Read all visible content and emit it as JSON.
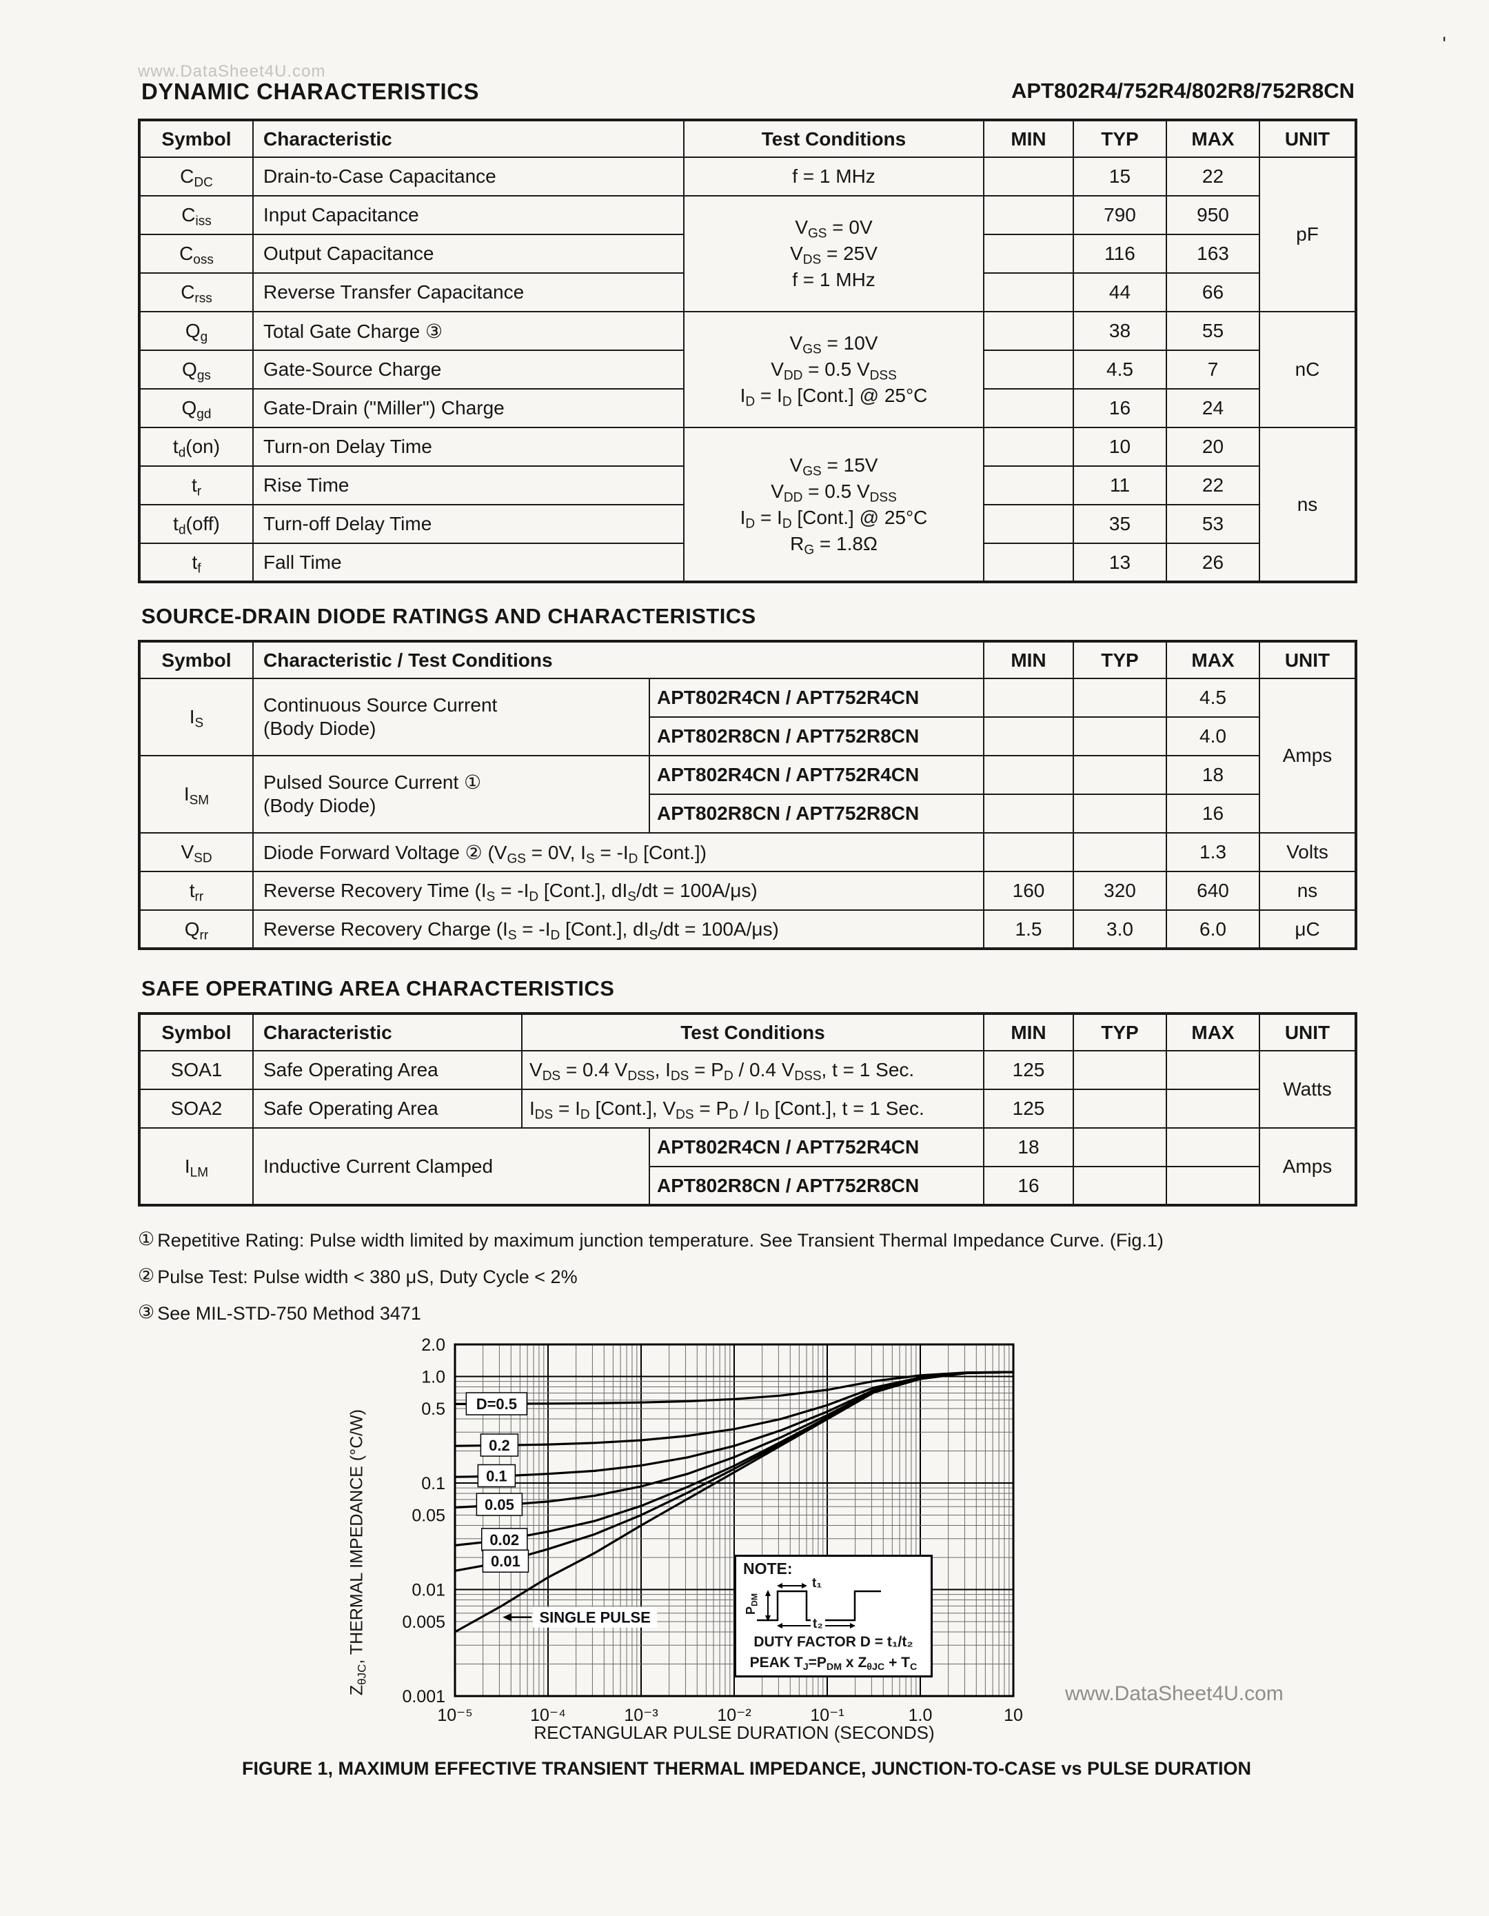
{
  "page": {
    "title": "DYNAMIC CHARACTERISTICS",
    "part_number": "APT802R4/752R4/802R8/752R8CN",
    "watermark_top": "www.DataSheet4U.com",
    "watermark_bottom": "www.DataSheet4U.com",
    "artifact": "'"
  },
  "dyn_table": {
    "headers": {
      "symbol": "Symbol",
      "characteristic": "Characteristic",
      "conditions": "Test Conditions",
      "min": "MIN",
      "typ": "TYP",
      "max": "MAX",
      "unit": "UNIT"
    },
    "rows": [
      {
        "symbol": "C~DC~",
        "characteristic": "Drain-to-Case Capacitance",
        "typ": "15",
        "max": "22"
      },
      {
        "symbol": "C~iss~",
        "characteristic": "Input Capacitance",
        "typ": "790",
        "max": "950"
      },
      {
        "symbol": "C~oss~",
        "characteristic": "Output Capacitance",
        "typ": "116",
        "max": "163"
      },
      {
        "symbol": "C~rss~",
        "characteristic": "Reverse Transfer Capacitance",
        "typ": "44",
        "max": "66"
      },
      {
        "symbol": "Q~g~",
        "characteristic": "Total Gate Charge ③",
        "typ": "38",
        "max": "55"
      },
      {
        "symbol": "Q~gs~",
        "characteristic": "Gate-Source Charge",
        "typ": "4.5",
        "max": "7"
      },
      {
        "symbol": "Q~gd~",
        "characteristic": "Gate-Drain (\"Miller\") Charge",
        "typ": "16",
        "max": "24"
      },
      {
        "symbol": "t~d~(on)",
        "characteristic": "Turn-on Delay Time",
        "typ": "10",
        "max": "20"
      },
      {
        "symbol": "t~r~",
        "characteristic": "Rise Time",
        "typ": "11",
        "max": "22"
      },
      {
        "symbol": "t~d~(off)",
        "characteristic": "Turn-off Delay Time",
        "typ": "35",
        "max": "53"
      },
      {
        "symbol": "t~f~",
        "characteristic": "Fall Time",
        "typ": "13",
        "max": "26"
      }
    ],
    "cond_cdc": "f = 1 MHz",
    "cond_cap": [
      "V~GS~ = 0V",
      "V~DS~ = 25V",
      "f = 1 MHz"
    ],
    "cond_charge": [
      "V~GS~ = 10V",
      "V~DD~ = 0.5 V~DSS~",
      "I~D~ = I~D~ [Cont.] @ 25°C"
    ],
    "cond_switch": [
      "V~GS~ = 15V",
      "V~DD~ = 0.5 V~DSS~",
      "I~D~ = I~D~ [Cont.] @ 25°C",
      "R~G~ = 1.8Ω"
    ],
    "unit_cap": "pF",
    "unit_charge": "nC",
    "unit_switch": "ns"
  },
  "diode_table": {
    "title": "SOURCE-DRAIN DIODE RATINGS AND CHARACTERISTICS",
    "headers": {
      "symbol": "Symbol",
      "characteristic": "Characteristic / Test Conditions",
      "min": "MIN",
      "typ": "TYP",
      "max": "MAX",
      "unit": "UNIT"
    },
    "is": {
      "symbol": "I~S~",
      "line1": "Continuous Source Current",
      "line2": "(Body Diode)",
      "r4": "APT802R4CN / APT752R4CN",
      "r4_max": "4.5",
      "r8": "APT802R8CN / APT752R8CN",
      "r8_max": "4.0"
    },
    "ism": {
      "symbol": "I~SM~",
      "line1": "Pulsed Source Current ①",
      "line2": "(Body Diode)",
      "r4": "APT802R4CN / APT752R4CN",
      "r4_max": "18",
      "r8": "APT802R8CN / APT752R8CN",
      "r8_max": "16"
    },
    "unit_amps": "Amps",
    "vsd": {
      "symbol": "V~SD~",
      "characteristic": "Diode Forward Voltage ② (V~GS~ = 0V, I~S~ = -I~D~ [Cont.])",
      "max": "1.3",
      "unit": "Volts"
    },
    "trr": {
      "symbol": "t~rr~",
      "characteristic": "Reverse Recovery Time (I~S~ = -I~D~ [Cont.], dI~S~/dt = 100A/μs)",
      "min": "160",
      "typ": "320",
      "max": "640",
      "unit": "ns"
    },
    "qrr": {
      "symbol": "Q~rr~",
      "characteristic": "Reverse Recovery Charge (I~S~ = -I~D~ [Cont.], dI~S~/dt = 100A/μs)",
      "min": "1.5",
      "typ": "3.0",
      "max": "6.0",
      "unit": "μC"
    }
  },
  "soa_table": {
    "title": "SAFE OPERATING AREA CHARACTERISTICS",
    "headers": {
      "symbol": "Symbol",
      "characteristic": "Characteristic",
      "conditions": "Test Conditions",
      "min": "MIN",
      "typ": "TYP",
      "max": "MAX",
      "unit": "UNIT"
    },
    "soa1": {
      "symbol": "SOA1",
      "characteristic": "Safe Operating Area",
      "conditions": "V~DS~ = 0.4 V~DSS~, I~DS~ = P~D~ / 0.4 V~DSS~, t = 1 Sec.",
      "min": "125"
    },
    "soa2": {
      "symbol": "SOA2",
      "characteristic": "Safe Operating Area",
      "conditions": "I~DS~ = I~D~ [Cont.], V~DS~ = P~D~ / I~D~ [Cont.], t = 1 Sec.",
      "min": "125"
    },
    "unit_watts": "Watts",
    "ilm": {
      "symbol": "I~LM~",
      "characteristic": "Inductive Current Clamped",
      "r4": "APT802R4CN / APT752R4CN",
      "r4_min": "18",
      "r8": "APT802R8CN / APT752R8CN",
      "r8_min": "16",
      "unit": "Amps"
    }
  },
  "footnotes": [
    {
      "mark": "①",
      "text": "Repetitive Rating: Pulse width limited by maximum junction temperature. See Transient Thermal Impedance Curve. (Fig.1)"
    },
    {
      "mark": "②",
      "text": "Pulse Test: Pulse width < 380 μS, Duty Cycle < 2%"
    },
    {
      "mark": "③",
      "text": "See MIL-STD-750 Method 3471"
    }
  ],
  "chart_data": {
    "type": "line",
    "caption": "FIGURE 1, MAXIMUM EFFECTIVE TRANSIENT THERMAL IMPEDANCE, JUNCTION-TO-CASE vs PULSE DURATION",
    "xlabel": "RECTANGULAR PULSE DURATION (SECONDS)",
    "ylabel": "Z~θJC~, THERMAL IMPEDANCE (°C/W)",
    "xscale": "log",
    "yscale": "log",
    "xlim": [
      1e-05,
      10
    ],
    "ylim": [
      0.001,
      2.0
    ],
    "x_ticks": [
      {
        "v": 1e-05,
        "label": "10⁻⁵"
      },
      {
        "v": 0.0001,
        "label": "10⁻⁴"
      },
      {
        "v": 0.001,
        "label": "10⁻³"
      },
      {
        "v": 0.01,
        "label": "10⁻²"
      },
      {
        "v": 0.1,
        "label": "10⁻¹"
      },
      {
        "v": 1,
        "label": "1.0"
      },
      {
        "v": 10,
        "label": "10"
      }
    ],
    "y_ticks": [
      {
        "v": 2.0,
        "label": "2.0"
      },
      {
        "v": 1.0,
        "label": "1.0"
      },
      {
        "v": 0.5,
        "label": "0.5"
      },
      {
        "v": 0.1,
        "label": "0.1"
      },
      {
        "v": 0.05,
        "label": "0.05"
      },
      {
        "v": 0.01,
        "label": "0.01"
      },
      {
        "v": 0.005,
        "label": "0.005"
      },
      {
        "v": 0.001,
        "label": "0.001"
      }
    ],
    "x": [
      1e-05,
      3.16e-05,
      0.0001,
      0.000316,
      0.001,
      0.00316,
      0.01,
      0.0316,
      0.1,
      0.316,
      1,
      3.16,
      10
    ],
    "series": [
      {
        "name": "D=0.5",
        "values": [
          0.552,
          0.554,
          0.557,
          0.561,
          0.57,
          0.586,
          0.613,
          0.662,
          0.749,
          0.904,
          1.025,
          1.09,
          1.1
        ]
      },
      {
        "name": "D=0.2",
        "values": [
          0.223,
          0.226,
          0.23,
          0.238,
          0.252,
          0.277,
          0.321,
          0.399,
          0.538,
          0.786,
          0.98,
          1.085,
          1.1
        ]
      },
      {
        "name": "D=0.1",
        "values": [
          0.114,
          0.116,
          0.122,
          0.13,
          0.146,
          0.174,
          0.223,
          0.312,
          0.468,
          0.747,
          0.965,
          1.083,
          1.1
        ]
      },
      {
        "name": "D=0.05",
        "values": [
          0.059,
          0.062,
          0.067,
          0.076,
          0.093,
          0.122,
          0.175,
          0.268,
          0.433,
          0.728,
          0.958,
          1.082,
          1.1
        ]
      },
      {
        "name": "D=0.02",
        "values": [
          0.026,
          0.029,
          0.035,
          0.044,
          0.061,
          0.092,
          0.145,
          0.242,
          0.412,
          0.716,
          0.953,
          1.081,
          1.1
        ]
      },
      {
        "name": "D=0.01",
        "values": [
          0.015,
          0.018,
          0.024,
          0.033,
          0.05,
          0.081,
          0.136,
          0.233,
          0.405,
          0.712,
          0.951,
          1.08,
          1.1
        ]
      },
      {
        "name": "SINGLE PULSE",
        "values": [
          0.004,
          0.007,
          0.013,
          0.022,
          0.04,
          0.071,
          0.126,
          0.224,
          0.398,
          0.708,
          0.95,
          1.078,
          1.1
        ]
      }
    ],
    "curve_labels": [
      {
        "text": "D=0.5",
        "t": 2.8e-05,
        "z": 0.555,
        "w": 88
      },
      {
        "text": "0.2",
        "t": 3e-05,
        "z": 0.227,
        "w": 54
      },
      {
        "text": "0.1",
        "t": 2.8e-05,
        "z": 0.117,
        "w": 54
      },
      {
        "text": "0.05",
        "t": 3e-05,
        "z": 0.063,
        "w": 66
      },
      {
        "text": "0.02",
        "t": 3.4e-05,
        "z": 0.0295,
        "w": 66
      },
      {
        "text": "0.01",
        "t": 3.5e-05,
        "z": 0.0185,
        "w": 66
      }
    ],
    "single_pulse_label": {
      "text": "SINGLE PULSE",
      "t": 0.00032,
      "z": 0.0055
    },
    "note": {
      "title": "NOTE:",
      "pdm_label": "P~DM~",
      "t1_label": "t₁",
      "t2_label": "t₂",
      "duty_factor": "DUTY FACTOR D = t₁/t₂",
      "peak": "PEAK T~J~=P~DM~ x Z~θJC~ + T~C~"
    }
  }
}
